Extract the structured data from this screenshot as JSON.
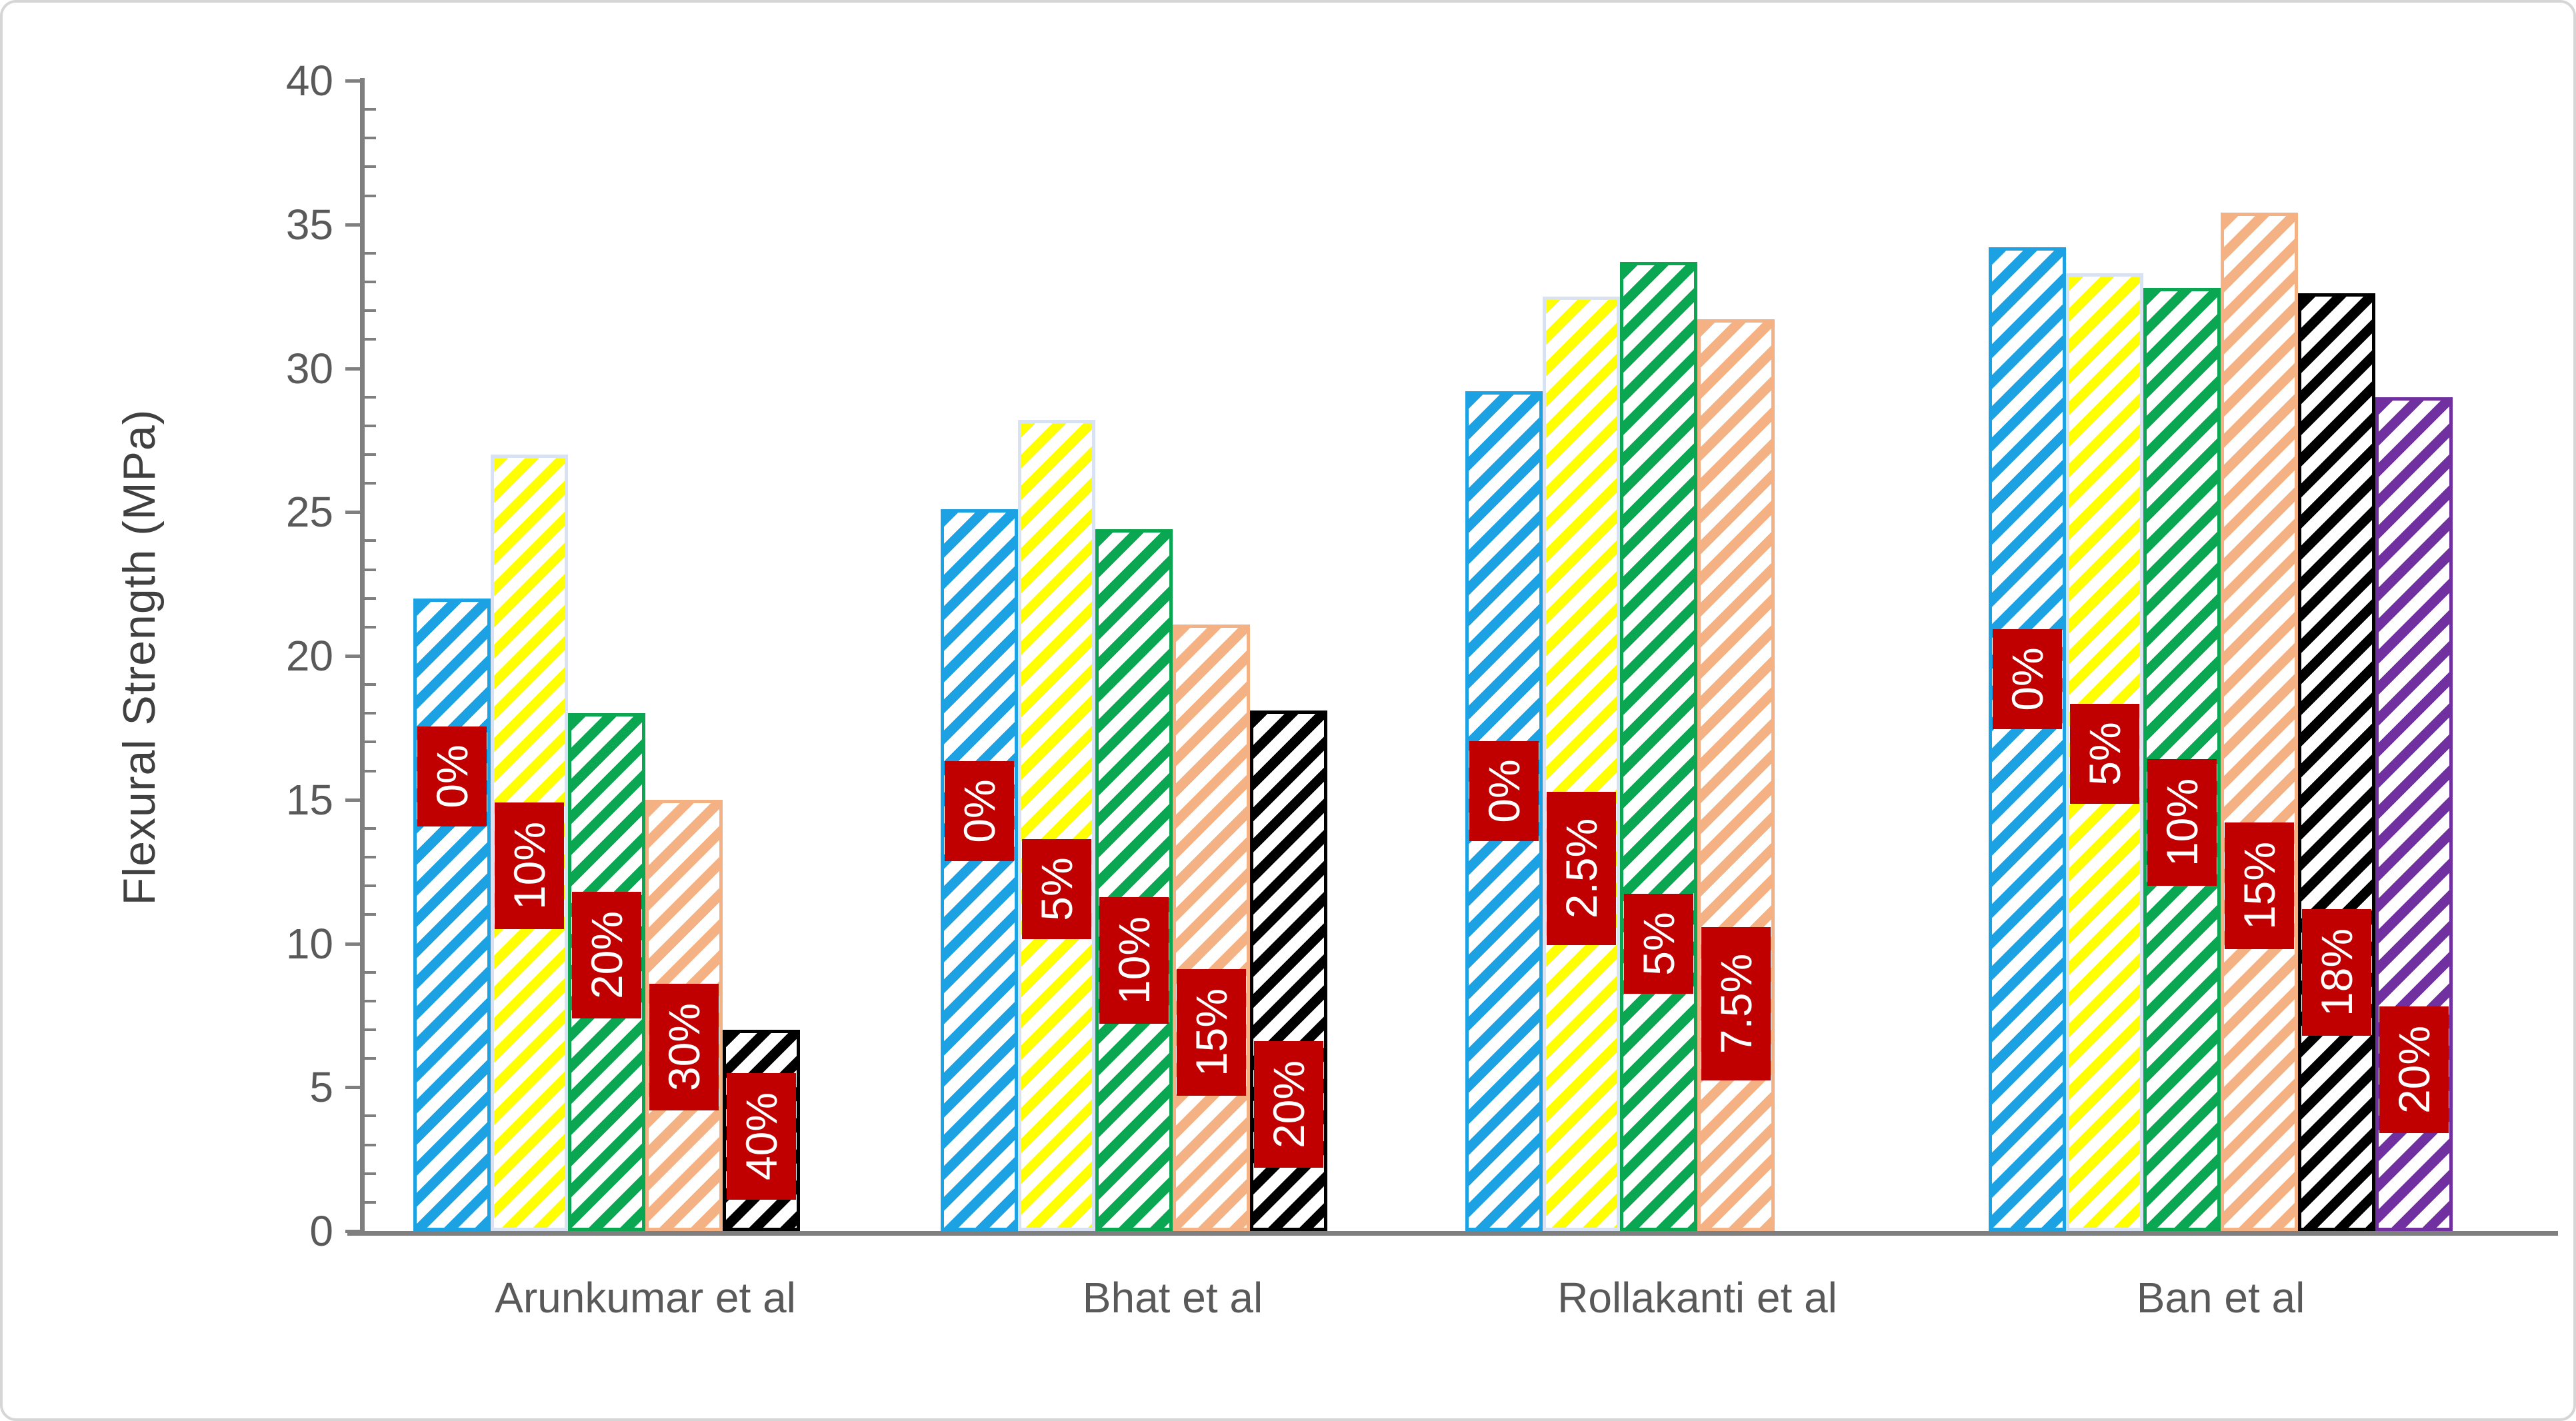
{
  "figure": {
    "ylabel": "Flexural Strength (MPa)"
  },
  "chart_data": {
    "type": "bar",
    "title": "",
    "xlabel": "",
    "ylabel": "Flexural Strength (MPa)",
    "ylim": [
      0,
      40
    ],
    "yticks": [
      "0",
      "5",
      "10",
      "15",
      "20",
      "25",
      "30",
      "35",
      "40"
    ],
    "minor_tick_step": 1,
    "grid": false,
    "legend": "none",
    "bar_hatch": "diagonal-stripes",
    "categories": [
      "Arunkumar et al",
      "Bhat et al",
      "Rollakanti et al",
      "Ban et al"
    ],
    "groups": [
      {
        "category": "Arunkumar et al",
        "bars": [
          {
            "label": "0%",
            "value": 22.0,
            "label_y": 15.8
          },
          {
            "label": "10%",
            "value": 27.0,
            "label_y": 12.7
          },
          {
            "label": "20%",
            "value": 18.0,
            "label_y": 9.6
          },
          {
            "label": "30%",
            "value": 15.0,
            "label_y": 6.4
          },
          {
            "label": "40%",
            "value": 7.0,
            "label_y": 3.3
          }
        ]
      },
      {
        "category": "Bhat et al",
        "bars": [
          {
            "label": "0%",
            "value": 25.1,
            "label_y": 14.6
          },
          {
            "label": "5%",
            "value": 28.2,
            "label_y": 11.9
          },
          {
            "label": "10%",
            "value": 24.4,
            "label_y": 9.4
          },
          {
            "label": "15%",
            "value": 21.1,
            "label_y": 6.9
          },
          {
            "label": "20%",
            "value": 18.1,
            "label_y": 4.4
          }
        ]
      },
      {
        "category": "Rollakanti et al",
        "bars": [
          {
            "label": "0%",
            "value": 29.2,
            "label_y": 15.3
          },
          {
            "label": "2.5%",
            "value": 32.5,
            "label_y": 12.6
          },
          {
            "label": "5%",
            "value": 33.7,
            "label_y": 10.0
          },
          {
            "label": "7.5%",
            "value": 31.7,
            "label_y": 7.9
          }
        ]
      },
      {
        "category": "Ban et al",
        "bars": [
          {
            "label": "0%",
            "value": 34.2,
            "label_y": 19.2
          },
          {
            "label": "5%",
            "value": 33.3,
            "label_y": 16.6
          },
          {
            "label": "10%",
            "value": 32.8,
            "label_y": 14.2
          },
          {
            "label": "15%",
            "value": 35.4,
            "label_y": 12.0
          },
          {
            "label": "18%",
            "value": 32.6,
            "label_y": 9.0
          },
          {
            "label": "20%",
            "value": 29.0,
            "label_y": 5.6
          }
        ]
      }
    ],
    "colors": {
      "series": [
        "#1CA2E2",
        "#FFFF00",
        "#0AA651",
        "#F4B183",
        "#000000",
        "#7030A0"
      ],
      "yellow_bar_border": "#D9E2F3",
      "label_box_bg": "#C00000",
      "label_text": "#FFFFFF",
      "axis": "#7F7F7F",
      "tick_text": "#595959",
      "title_text": "#404040",
      "frame_border": "#D6D6D6"
    }
  }
}
